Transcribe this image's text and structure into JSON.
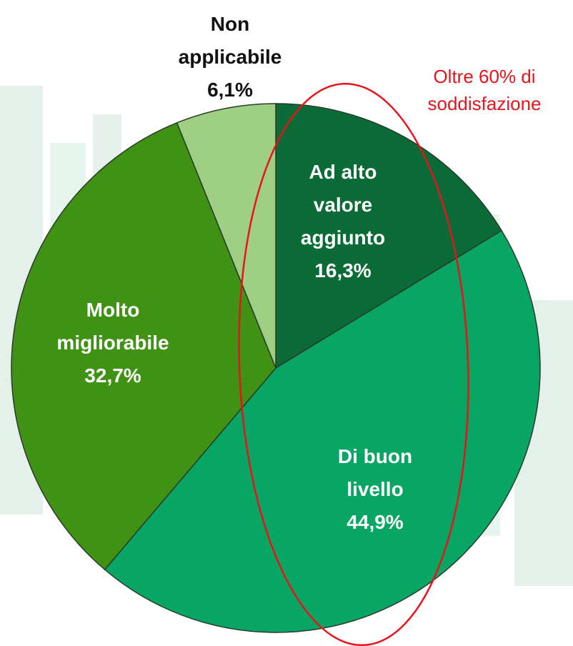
{
  "chart_data": {
    "type": "pie",
    "categories": [
      "Ad alto valore aggiunto",
      "Di buon livello",
      "Molto migliorabile",
      "Non applicabile"
    ],
    "values": [
      16.3,
      44.9,
      32.7,
      6.1
    ],
    "value_labels": [
      "16,3%",
      "44,9%",
      "32,7%",
      "6,1%"
    ],
    "colors": [
      "#0b6b36",
      "#08a664",
      "#3f9214",
      "#9fcf82"
    ],
    "annotation": "Oltre 60% di soddisfazione"
  }
}
